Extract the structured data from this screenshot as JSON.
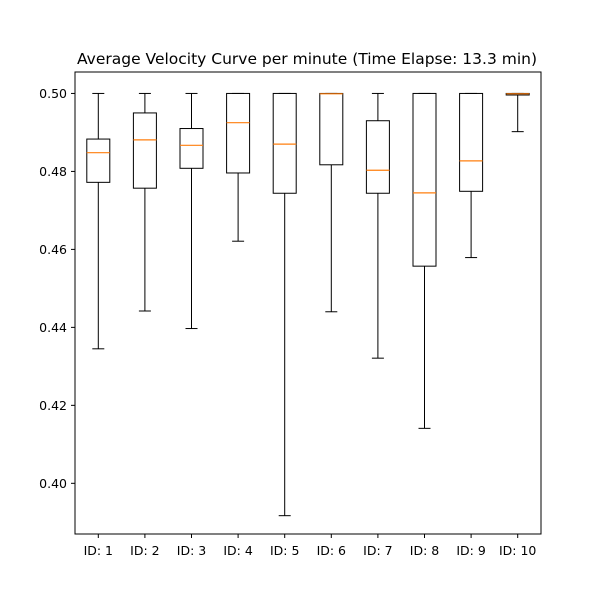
{
  "chart_data": {
    "type": "box",
    "title": "Average Velocity Curve per minute (Time Elapse: 13.3 min)",
    "xlabel": "",
    "ylabel": "",
    "ylim": [
      0.387,
      0.5055
    ],
    "yticks": [
      0.4,
      0.42,
      0.44,
      0.46,
      0.48,
      0.5
    ],
    "ytick_labels": [
      "0.40",
      "0.42",
      "0.44",
      "0.46",
      "0.48",
      "0.50"
    ],
    "categories": [
      "ID: 1",
      "ID: 2",
      "ID: 3",
      "ID: 4",
      "ID: 5",
      "ID: 6",
      "ID: 7",
      "ID: 8",
      "ID: 9",
      "ID: 10"
    ],
    "boxes": [
      {
        "whisker_low": 0.4345,
        "q1": 0.4772,
        "median": 0.4848,
        "q3": 0.4883,
        "whisker_high": 0.5
      },
      {
        "whisker_low": 0.4442,
        "q1": 0.4757,
        "median": 0.4881,
        "q3": 0.495,
        "whisker_high": 0.5
      },
      {
        "whisker_low": 0.4397,
        "q1": 0.4808,
        "median": 0.4867,
        "q3": 0.491,
        "whisker_high": 0.5
      },
      {
        "whisker_low": 0.4621,
        "q1": 0.4796,
        "median": 0.4925,
        "q3": 0.5,
        "whisker_high": 0.5
      },
      {
        "whisker_low": 0.3917,
        "q1": 0.4744,
        "median": 0.487,
        "q3": 0.5,
        "whisker_high": 0.5
      },
      {
        "whisker_low": 0.444,
        "q1": 0.4817,
        "median": 0.4999,
        "q3": 0.5,
        "whisker_high": 0.5
      },
      {
        "whisker_low": 0.4321,
        "q1": 0.4744,
        "median": 0.4803,
        "q3": 0.493,
        "whisker_high": 0.5
      },
      {
        "whisker_low": 0.4141,
        "q1": 0.4557,
        "median": 0.4745,
        "q3": 0.5,
        "whisker_high": 0.5
      },
      {
        "whisker_low": 0.4579,
        "q1": 0.4749,
        "median": 0.4827,
        "q3": 0.5,
        "whisker_high": 0.5
      },
      {
        "whisker_low": 0.4902,
        "q1": 0.4996,
        "median": 0.4999,
        "q3": 0.5,
        "whisker_high": 0.5
      }
    ],
    "colors": {
      "box": "#000000",
      "median": "#ff7f0e",
      "background": "#ffffff"
    },
    "grid": false,
    "legend": "none"
  }
}
